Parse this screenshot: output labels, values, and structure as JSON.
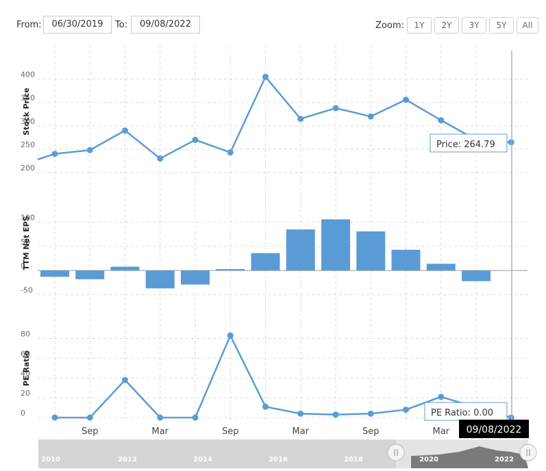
{
  "toolbar": {
    "from_label": "From:",
    "from_value": "06/30/2019",
    "to_label": "To:",
    "to_value": "09/08/2022",
    "zoom_label": "Zoom:",
    "zoom_buttons": [
      "1Y",
      "2Y",
      "3Y",
      "5Y",
      "All"
    ]
  },
  "colors": {
    "series": "#5b9bd5",
    "grid": "#d9d9d9",
    "tooltip_border": "#5b9bd5",
    "date_badge": "#000000"
  },
  "chart_data": [
    {
      "type": "line",
      "ylabel": "Stock Price",
      "ylim": [
        200,
        420
      ],
      "yticks": [
        200,
        250,
        300,
        350,
        400
      ],
      "x": [
        0.5,
        1,
        2,
        3,
        4,
        5,
        6,
        7,
        8,
        9,
        10,
        11,
        12,
        13,
        14
      ],
      "values": [
        228,
        240,
        248,
        290,
        230,
        270,
        243,
        405,
        315,
        338,
        320,
        356,
        312,
        270,
        264.79
      ],
      "tooltip": {
        "label": "Price:",
        "value": "264.79"
      }
    },
    {
      "type": "bar",
      "ylabel": "TTM Net EPS",
      "ylim": [
        -55,
        115
      ],
      "yticks": [
        -50,
        0,
        50,
        100
      ],
      "x": [
        1,
        2,
        3,
        4,
        5,
        6,
        7,
        8,
        9,
        10,
        11,
        12,
        13
      ],
      "values": [
        -13,
        -18,
        8,
        -37,
        -29,
        3,
        36,
        85,
        106,
        81,
        43,
        14,
        -22
      ]
    },
    {
      "type": "line",
      "ylabel": "PE Ratio",
      "ylim": [
        0,
        90
      ],
      "yticks": [
        0,
        20,
        40,
        60,
        80
      ],
      "x": [
        1,
        2,
        3,
        4,
        5,
        6,
        7,
        8,
        9,
        10,
        11,
        12,
        14
      ],
      "values": [
        0,
        0,
        38,
        0,
        0,
        83,
        11,
        4,
        3,
        4,
        8,
        21,
        0
      ],
      "tooltip": {
        "label": "PE Ratio:",
        "value": "0.00"
      }
    }
  ],
  "x_axis": {
    "ticks": [
      {
        "pos": 2,
        "label": "Sep"
      },
      {
        "pos": 4,
        "label": "Mar"
      },
      {
        "pos": 6,
        "label": "Sep"
      },
      {
        "pos": 8,
        "label": "Mar"
      },
      {
        "pos": 10,
        "label": "Sep"
      },
      {
        "pos": 12,
        "label": "Mar"
      }
    ],
    "selected_date": "09/08/2022"
  },
  "navigator": {
    "years": [
      "2010",
      "2012",
      "2014",
      "2016",
      "2018",
      "2020",
      "2022"
    ]
  }
}
